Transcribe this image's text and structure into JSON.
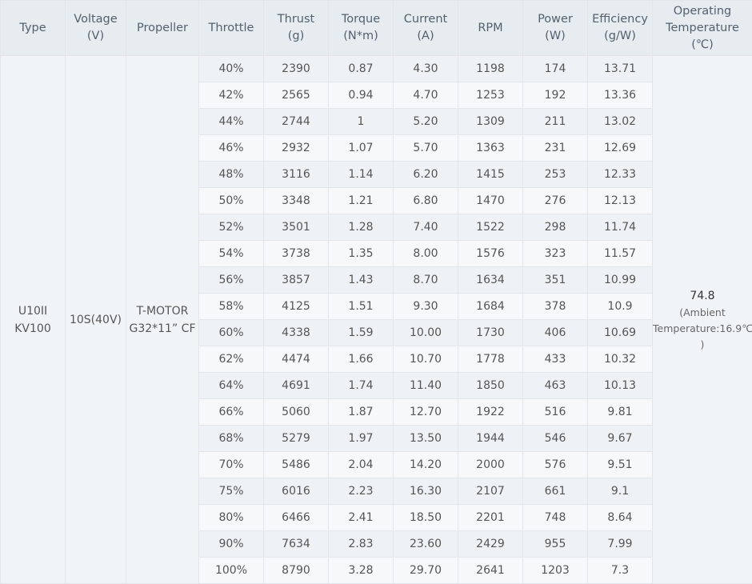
{
  "headers": {
    "type": [
      "Type"
    ],
    "voltage": [
      "Voltage",
      "(V)"
    ],
    "propeller": [
      "Propeller"
    ],
    "throttle": [
      "Throttle"
    ],
    "thrust": [
      "Thrust",
      "(g)"
    ],
    "torque": [
      "Torque",
      "(N*m)"
    ],
    "current": [
      "Current",
      "(A)"
    ],
    "rpm": [
      "RPM"
    ],
    "power": [
      "Power",
      "(W)"
    ],
    "efficiency": [
      "Efficiency",
      "(g/W)"
    ],
    "temperature": [
      "Operating",
      "Temperature",
      "(℃)"
    ]
  },
  "merged": {
    "type": [
      "U10II",
      "KV100"
    ],
    "voltage": "10S(40V)",
    "propeller": [
      "T-MOTOR",
      "G32*11” CF"
    ],
    "temperature_value": "74.8",
    "temperature_note": [
      "(Ambient",
      "Temperature:16.9℃",
      ")"
    ]
  },
  "rows": [
    [
      "40%",
      "2390",
      "0.87",
      "4.30",
      "1198",
      "174",
      "13.71"
    ],
    [
      "42%",
      "2565",
      "0.94",
      "4.70",
      "1253",
      "192",
      "13.36"
    ],
    [
      "44%",
      "2744",
      "1",
      "5.20",
      "1309",
      "211",
      "13.02"
    ],
    [
      "46%",
      "2932",
      "1.07",
      "5.70",
      "1363",
      "231",
      "12.69"
    ],
    [
      "48%",
      "3116",
      "1.14",
      "6.20",
      "1415",
      "253",
      "12.33"
    ],
    [
      "50%",
      "3348",
      "1.21",
      "6.80",
      "1470",
      "276",
      "12.13"
    ],
    [
      "52%",
      "3501",
      "1.28",
      "7.40",
      "1522",
      "298",
      "11.74"
    ],
    [
      "54%",
      "3738",
      "1.35",
      "8.00",
      "1576",
      "323",
      "11.57"
    ],
    [
      "56%",
      "3857",
      "1.43",
      "8.70",
      "1634",
      "351",
      "10.99"
    ],
    [
      "58%",
      "4125",
      "1.51",
      "9.30",
      "1684",
      "378",
      "10.9"
    ],
    [
      "60%",
      "4338",
      "1.59",
      "10.00",
      "1730",
      "406",
      "10.69"
    ],
    [
      "62%",
      "4474",
      "1.66",
      "10.70",
      "1778",
      "433",
      "10.32"
    ],
    [
      "64%",
      "4691",
      "1.74",
      "11.40",
      "1850",
      "463",
      "10.13"
    ],
    [
      "66%",
      "5060",
      "1.87",
      "12.70",
      "1922",
      "516",
      "9.81"
    ],
    [
      "68%",
      "5279",
      "1.97",
      "13.50",
      "1944",
      "546",
      "9.67"
    ],
    [
      "70%",
      "5486",
      "2.04",
      "14.20",
      "2000",
      "576",
      "9.51"
    ],
    [
      "75%",
      "6016",
      "2.23",
      "16.30",
      "2107",
      "661",
      "9.1"
    ],
    [
      "80%",
      "6466",
      "2.41",
      "18.50",
      "2201",
      "748",
      "8.64"
    ],
    [
      "90%",
      "7634",
      "2.83",
      "23.60",
      "2429",
      "955",
      "7.99"
    ],
    [
      "100%",
      "8790",
      "3.28",
      "29.70",
      "2641",
      "1203",
      "7.3"
    ]
  ]
}
